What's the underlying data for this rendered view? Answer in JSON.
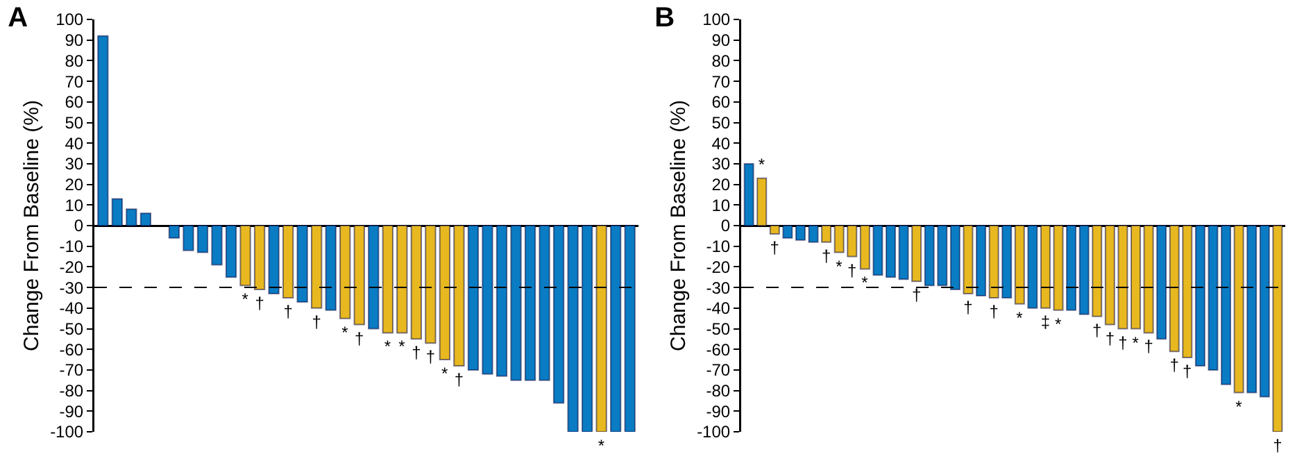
{
  "chart_data": [
    {
      "type": "bar",
      "title": "A",
      "ylabel": "Change From Baseline (%)",
      "categories": [
        null,
        null,
        null,
        null,
        null,
        null,
        null,
        null,
        null,
        null,
        null,
        null,
        null,
        null,
        null,
        null,
        null,
        null,
        null,
        null,
        null,
        null,
        null,
        null,
        null,
        null,
        null,
        null,
        null,
        null,
        null,
        null,
        null,
        null,
        null,
        null,
        null,
        null
      ],
      "values": [
        92,
        13,
        8,
        6,
        null,
        -6,
        -12,
        -13,
        -19,
        -25,
        -29,
        -31,
        -33,
        -35,
        -37,
        -40,
        -41,
        -45,
        -48,
        -50,
        -52,
        -52,
        -55,
        -57,
        -65,
        -68,
        -70,
        -72,
        -73,
        -75,
        -75,
        -75,
        -86,
        -100,
        -100,
        -100,
        -100,
        -100
      ],
      "colors": [
        "#0a7cc4",
        "#0a7cc4",
        "#0a7cc4",
        "#0a7cc4",
        "#0a7cc4",
        "#0a7cc4",
        "#0a7cc4",
        "#0a7cc4",
        "#0a7cc4",
        "#0a7cc4",
        "#e8b820",
        "#e8b820",
        "#0a7cc4",
        "#e8b820",
        "#0a7cc4",
        "#e8b820",
        "#0a7cc4",
        "#e8b820",
        "#e8b820",
        "#0a7cc4",
        "#e8b820",
        "#e8b820",
        "#e8b820",
        "#e8b820",
        "#e8b820",
        "#e8b820",
        "#0a7cc4",
        "#0a7cc4",
        "#0a7cc4",
        "#0a7cc4",
        "#0a7cc4",
        "#0a7cc4",
        "#0a7cc4",
        "#0a7cc4",
        "#0a7cc4",
        "#e8b820",
        "#0a7cc4",
        "#0a7cc4"
      ],
      "value_labels": [
        null,
        null,
        null,
        null,
        null,
        null,
        null,
        null,
        null,
        null,
        "*",
        "†",
        null,
        "†",
        null,
        "†",
        null,
        "*",
        "†",
        null,
        "*",
        "*",
        "†",
        "†",
        "*",
        "†",
        null,
        null,
        null,
        null,
        null,
        null,
        null,
        null,
        null,
        "*",
        null,
        null
      ],
      "ylim": [
        -100,
        100
      ],
      "yticks": [
        -100,
        -90,
        -80,
        -70,
        -60,
        -50,
        -40,
        -30,
        -20,
        -10,
        0,
        10,
        20,
        30,
        40,
        50,
        60,
        70,
        80,
        90,
        100
      ],
      "ref_lines": [
        {
          "axis": "y",
          "value": -30,
          "color": "#000000",
          "line_style": "dashed"
        }
      ]
    },
    {
      "type": "bar",
      "title": "B",
      "ylabel": "Change From Baseline (%)",
      "categories": [
        null,
        null,
        null,
        null,
        null,
        null,
        null,
        null,
        null,
        null,
        null,
        null,
        null,
        null,
        null,
        null,
        null,
        null,
        null,
        null,
        null,
        null,
        null,
        null,
        null,
        null,
        null,
        null,
        null,
        null,
        null,
        null,
        null,
        null,
        null,
        null,
        null,
        null,
        null,
        null,
        null,
        null
      ],
      "values": [
        30,
        23,
        -4,
        -6,
        -7,
        -8,
        -8,
        -13,
        -15,
        -21,
        -24,
        -25,
        -26,
        -27,
        -29,
        -29,
        -31,
        -33,
        -34,
        -35,
        -35,
        -38,
        -40,
        -40,
        -41,
        -41,
        -43,
        -44,
        -48,
        -50,
        -50,
        -52,
        -55,
        -61,
        -64,
        -68,
        -70,
        -77,
        -81,
        -81,
        -83,
        -100
      ],
      "colors": [
        "#0a7cc4",
        "#e8b820",
        "#e8b820",
        "#0a7cc4",
        "#0a7cc4",
        "#0a7cc4",
        "#e8b820",
        "#e8b820",
        "#e8b820",
        "#e8b820",
        "#0a7cc4",
        "#0a7cc4",
        "#0a7cc4",
        "#e8b820",
        "#0a7cc4",
        "#0a7cc4",
        "#0a7cc4",
        "#e8b820",
        "#0a7cc4",
        "#e8b820",
        "#0a7cc4",
        "#e8b820",
        "#0a7cc4",
        "#e8b820",
        "#e8b820",
        "#0a7cc4",
        "#0a7cc4",
        "#e8b820",
        "#e8b820",
        "#e8b820",
        "#e8b820",
        "#e8b820",
        "#0a7cc4",
        "#e8b820",
        "#e8b820",
        "#0a7cc4",
        "#0a7cc4",
        "#0a7cc4",
        "#e8b820",
        "#0a7cc4",
        "#0a7cc4",
        "#e8b820"
      ],
      "value_labels": [
        null,
        "*",
        "†",
        null,
        null,
        null,
        "†",
        "*",
        "†",
        "*",
        null,
        null,
        null,
        "†",
        null,
        null,
        null,
        "†",
        null,
        "†",
        null,
        "*",
        null,
        "‡",
        "*",
        null,
        null,
        "†",
        "†",
        "†",
        "*",
        "†",
        null,
        "†",
        "†",
        null,
        null,
        null,
        "*",
        null,
        null,
        "†"
      ],
      "ylim": [
        -100,
        100
      ],
      "yticks": [
        -100,
        -90,
        -80,
        -70,
        -60,
        -50,
        -40,
        -30,
        -20,
        -10,
        0,
        10,
        20,
        30,
        40,
        50,
        60,
        70,
        80,
        90,
        100
      ],
      "ref_lines": [
        {
          "axis": "y",
          "value": -30,
          "color": "#000000",
          "line_style": "dashed"
        }
      ]
    }
  ]
}
